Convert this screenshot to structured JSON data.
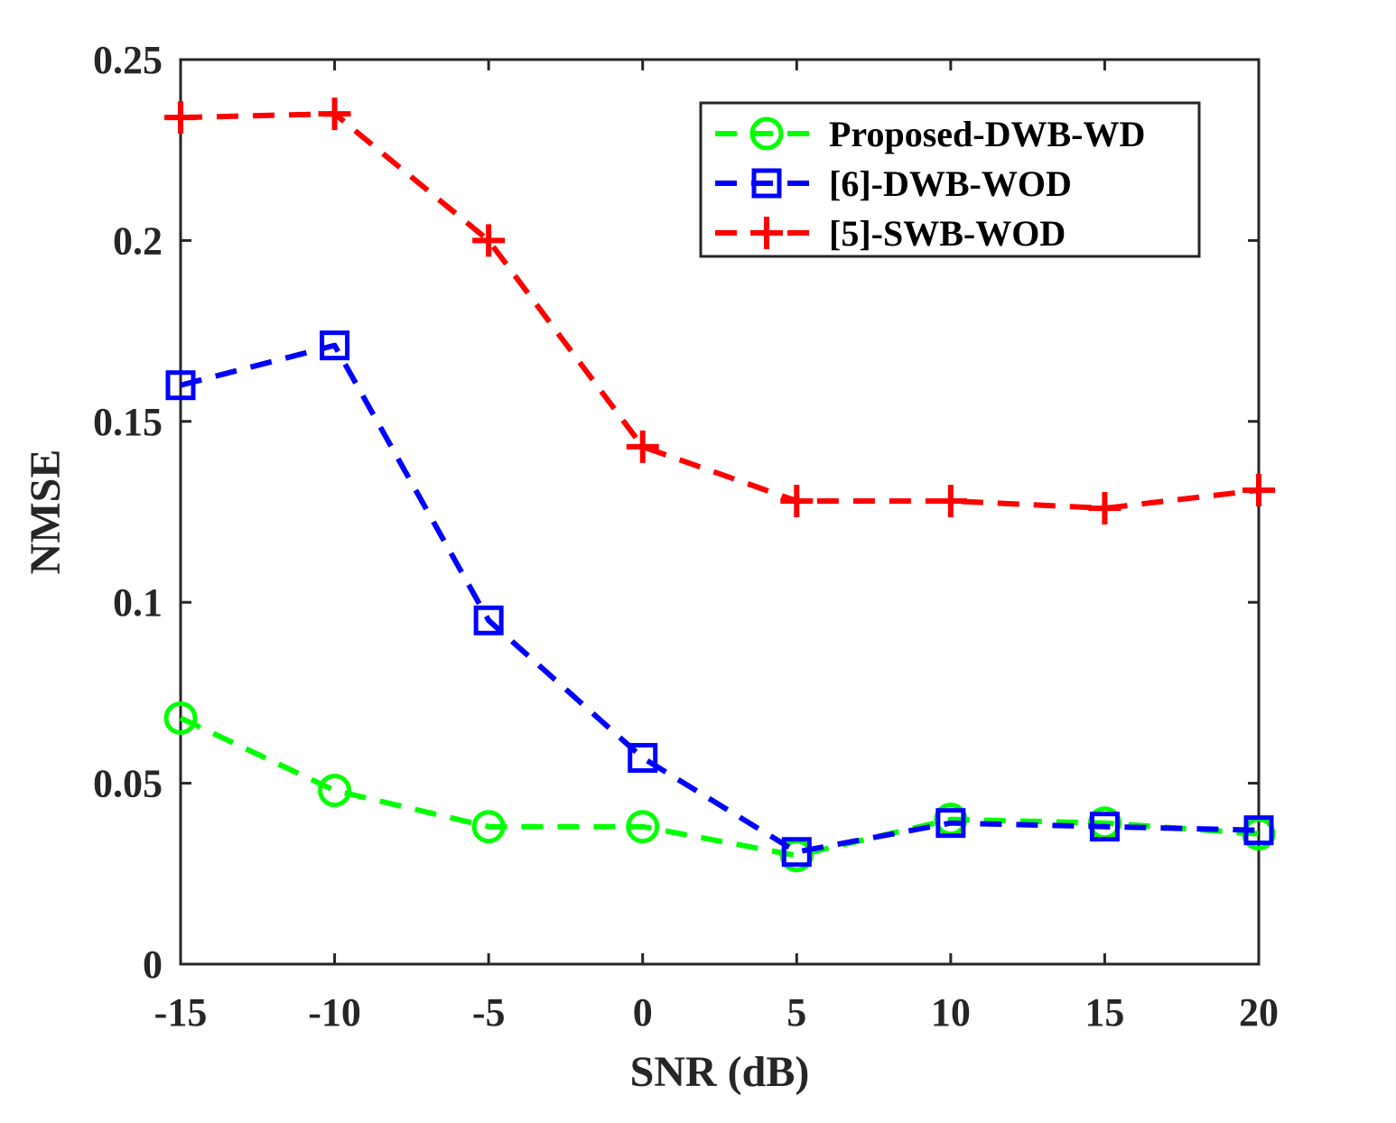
{
  "chart_data": {
    "type": "line",
    "xlabel": "SNR (dB)",
    "ylabel": "NMSE",
    "xlim": [
      -15,
      20
    ],
    "ylim": [
      0,
      0.25
    ],
    "x_ticks": [
      -15,
      -10,
      -5,
      0,
      5,
      10,
      15,
      20
    ],
    "y_ticks": [
      0,
      0.05,
      0.1,
      0.15,
      0.2,
      0.25
    ],
    "y_tick_labels": [
      "0",
      "0.05",
      "0.1",
      "0.15",
      "0.2",
      "0.25"
    ],
    "x_tick_labels": [
      "-15",
      "-10",
      "-5",
      "0",
      "5",
      "10",
      "15",
      "20"
    ],
    "grid": false,
    "legend_position": "top-right",
    "x": [
      -15,
      -10,
      -5,
      0,
      5,
      10,
      15,
      20
    ],
    "series": [
      {
        "name": "Proposed-DWB-WD",
        "color": "#00ff00",
        "marker": "circle",
        "line_style": "dashed",
        "values": [
          0.068,
          0.048,
          0.038,
          0.038,
          0.03,
          0.04,
          0.039,
          0.036
        ]
      },
      {
        "name": "[6]-DWB-WOD",
        "color": "#0000ff",
        "marker": "square",
        "line_style": "dashed",
        "values": [
          0.16,
          0.171,
          0.095,
          0.057,
          0.031,
          0.039,
          0.038,
          0.037
        ]
      },
      {
        "name": "[5]-SWB-WOD",
        "color": "#ff0000",
        "marker": "plus",
        "line_style": "dashed",
        "values": [
          0.234,
          0.235,
          0.2,
          0.143,
          0.128,
          0.128,
          0.126,
          0.131
        ]
      }
    ]
  }
}
